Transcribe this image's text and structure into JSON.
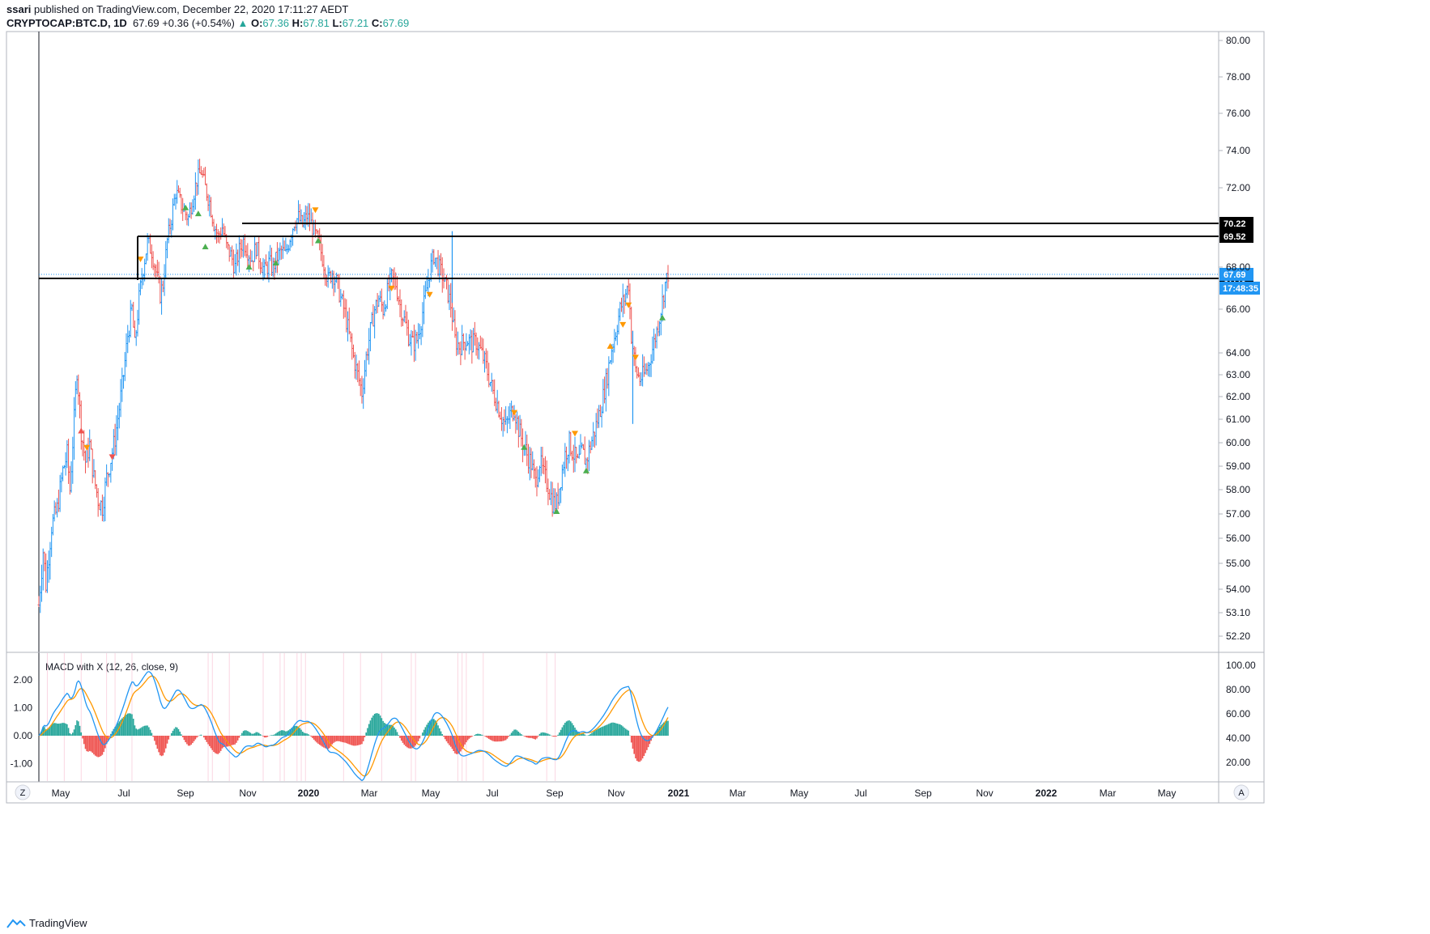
{
  "header": {
    "publisher": "ssari",
    "published_text": "published on TradingView.com, December 22, 2020 17:11:27 AEDT",
    "symbol": "CRYPTOCAP:BTC.D, 1D",
    "last": "67.69",
    "change": "+0.36 (+0.54%)",
    "change_arrow": "▲",
    "o_label": "O:",
    "o_value": "67.36",
    "h_label": "H:",
    "h_value": "67.81",
    "l_label": "L:",
    "l_value": "67.21",
    "c_label": "C:",
    "c_value": "67.69"
  },
  "footer": {
    "brand": "TradingView"
  },
  "axis_buttons": {
    "left": "Z",
    "right": "A"
  },
  "colors": {
    "up": "#2196f3",
    "down": "#ef5350",
    "macd_line": "#2196f3",
    "signal_line": "#ff9800",
    "hist_up": "#26a69a",
    "hist_down": "#ef5350",
    "price_badge": "#2196f3",
    "level_badge": "#000000"
  },
  "chart_data": [
    {
      "type": "ohlc",
      "yticks": [
        80.0,
        78.0,
        76.0,
        74.0,
        72.0,
        68.0,
        66.0,
        64.0,
        63.0,
        62.0,
        61.0,
        60.0,
        59.0,
        58.0,
        57.0,
        56.0,
        55.0,
        54.0,
        53.1,
        52.2
      ],
      "xticks": [
        "May",
        "Jul",
        "Sep",
        "Nov",
        "2020",
        "Mar",
        "May",
        "Jul",
        "Sep",
        "Nov",
        "2021",
        "Mar",
        "May",
        "Jul",
        "Sep",
        "Nov",
        "2022",
        "Mar",
        "May"
      ],
      "levels": [
        {
          "value": 70.22,
          "label": "70.22"
        },
        {
          "value": 69.52,
          "label": "69.52"
        },
        {
          "value": 67.46,
          "label": "67.46"
        }
      ],
      "current_price": {
        "value": 67.69,
        "label": "67.69",
        "countdown": "17:48:35"
      },
      "path": [
        [
          0,
          53.4
        ],
        [
          3,
          55.5
        ],
        [
          5,
          54.2
        ],
        [
          9,
          56.5
        ],
        [
          13,
          57.2
        ],
        [
          17,
          58.8
        ],
        [
          20,
          59.5
        ],
        [
          22,
          58.0
        ],
        [
          25,
          61.0
        ],
        [
          27,
          63.2
        ],
        [
          30,
          60.5
        ],
        [
          33,
          59.2
        ],
        [
          36,
          59.9
        ],
        [
          39,
          58.5
        ],
        [
          42,
          57.6
        ],
        [
          45,
          57.3
        ],
        [
          48,
          58.5
        ],
        [
          51,
          59.3
        ],
        [
          54,
          60.2
        ],
        [
          57,
          61.5
        ],
        [
          60,
          63.0
        ],
        [
          63,
          64.8
        ],
        [
          66,
          66.0
        ],
        [
          68,
          64.3
        ],
        [
          71,
          66.5
        ],
        [
          74,
          68.0
        ],
        [
          77,
          69.2
        ],
        [
          80,
          68.8
        ],
        [
          83,
          67.8
        ],
        [
          86,
          66.7
        ],
        [
          88,
          67.2
        ],
        [
          91,
          69.3
        ],
        [
          94,
          70.5
        ],
        [
          97,
          71.8
        ],
        [
          100,
          71.3
        ],
        [
          103,
          70.8
        ],
        [
          106,
          70.5
        ],
        [
          109,
          71.5
        ],
        [
          112,
          72.4
        ],
        [
          115,
          72.9
        ],
        [
          118,
          72.0
        ],
        [
          121,
          71.3
        ],
        [
          124,
          70.2
        ],
        [
          127,
          69.5
        ],
        [
          130,
          70.0
        ],
        [
          133,
          69.0
        ],
        [
          136,
          68.6
        ],
        [
          139,
          68.0
        ],
        [
          142,
          68.8
        ],
        [
          145,
          69.3
        ],
        [
          148,
          68.8
        ],
        [
          151,
          68.4
        ],
        [
          154,
          69.0
        ],
        [
          157,
          68.3
        ],
        [
          160,
          67.8
        ],
        [
          163,
          68.2
        ],
        [
          166,
          68.0
        ],
        [
          169,
          68.5
        ],
        [
          172,
          68.8
        ],
        [
          175,
          68.6
        ],
        [
          178,
          69.5
        ],
        [
          181,
          70.3
        ],
        [
          184,
          70.5
        ],
        [
          187,
          70.1
        ],
        [
          190,
          70.6
        ],
        [
          193,
          70.2
        ],
        [
          196,
          69.6
        ],
        [
          199,
          69.0
        ],
        [
          202,
          68.2
        ],
        [
          205,
          67.4
        ],
        [
          208,
          67.8
        ],
        [
          211,
          67.3
        ],
        [
          214,
          66.5
        ],
        [
          217,
          65.8
        ],
        [
          220,
          64.8
        ],
        [
          223,
          63.8
        ],
        [
          226,
          63.0
        ],
        [
          229,
          62.2
        ],
        [
          232,
          63.8
        ],
        [
          235,
          65.0
        ],
        [
          238,
          66.0
        ],
        [
          241,
          66.5
        ],
        [
          244,
          66.0
        ],
        [
          247,
          66.8
        ],
        [
          250,
          67.5
        ],
        [
          253,
          67.2
        ],
        [
          256,
          66.2
        ],
        [
          259,
          65.5
        ],
        [
          262,
          64.8
        ],
        [
          265,
          64.4
        ],
        [
          268,
          64.6
        ],
        [
          271,
          65.5
        ],
        [
          274,
          66.6
        ],
        [
          277,
          67.8
        ],
        [
          280,
          68.6
        ],
        [
          283,
          68.1
        ],
        [
          286,
          67.6
        ],
        [
          289,
          67.0
        ],
        [
          292,
          66.2
        ],
        [
          295,
          64.6
        ],
        [
          298,
          64.3
        ],
        [
          301,
          64.5
        ],
        [
          304,
          64.6
        ],
        [
          307,
          64.4
        ],
        [
          310,
          64.5
        ],
        [
          313,
          64.1
        ],
        [
          316,
          63.6
        ],
        [
          319,
          62.9
        ],
        [
          322,
          62.2
        ],
        [
          325,
          61.7
        ],
        [
          328,
          61.1
        ],
        [
          331,
          60.7
        ],
        [
          334,
          61.2
        ],
        [
          337,
          61.5
        ],
        [
          340,
          60.6
        ],
        [
          343,
          60.0
        ],
        [
          346,
          59.5
        ],
        [
          349,
          59.1
        ],
        [
          352,
          58.3
        ],
        [
          355,
          59.2
        ],
        [
          358,
          58.6
        ],
        [
          361,
          58.2
        ],
        [
          364,
          57.5
        ],
        [
          367,
          57.4
        ],
        [
          370,
          58.5
        ],
        [
          373,
          59.5
        ],
        [
          376,
          60.0
        ],
        [
          379,
          59.5
        ],
        [
          382,
          59.1
        ],
        [
          385,
          59.6
        ],
        [
          388,
          59.2
        ],
        [
          391,
          59.9
        ],
        [
          394,
          60.5
        ],
        [
          397,
          61.2
        ],
        [
          400,
          62.0
        ],
        [
          403,
          63.0
        ],
        [
          406,
          64.2
        ],
        [
          409,
          65.0
        ],
        [
          412,
          66.0
        ],
        [
          415,
          66.5
        ],
        [
          418,
          67.2
        ],
        [
          420,
          64.8
        ],
        [
          423,
          63.2
        ],
        [
          426,
          62.8
        ],
        [
          429,
          63.0
        ],
        [
          432,
          63.4
        ],
        [
          435,
          64.2
        ],
        [
          438,
          65.0
        ],
        [
          441,
          66.0
        ],
        [
          444,
          67.2
        ],
        [
          446,
          67.69
        ]
      ],
      "indicator": {
        "title": "MACD with X (12, 26, close, 9)",
        "yticks_left": [
          2.0,
          1.0,
          0.0,
          -1.0
        ],
        "yticks_right": [
          100.0,
          80.0,
          60.0,
          40.0,
          20.0
        ]
      }
    }
  ]
}
